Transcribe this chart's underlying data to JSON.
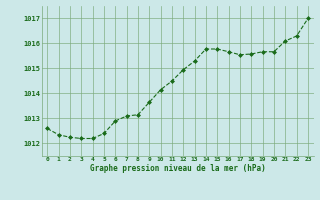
{
  "x": [
    0,
    1,
    2,
    3,
    4,
    5,
    6,
    7,
    8,
    9,
    10,
    11,
    12,
    13,
    14,
    15,
    16,
    17,
    18,
    19,
    20,
    21,
    22,
    23
  ],
  "y": [
    1012.6,
    1012.35,
    1012.25,
    1012.2,
    1012.2,
    1012.4,
    1012.9,
    1013.1,
    1013.15,
    1013.65,
    1014.15,
    1014.5,
    1014.95,
    1015.3,
    1015.78,
    1015.78,
    1015.67,
    1015.55,
    1015.58,
    1015.67,
    1015.67,
    1016.1,
    1016.3,
    1017.0
  ],
  "line_color": "#1a6b1a",
  "marker_color": "#1a6b1a",
  "bg_color": "#cce8e8",
  "grid_color": "#7aaa7a",
  "xlabel": "Graphe pression niveau de la mer (hPa)",
  "xlabel_color": "#1a6b1a",
  "tick_color": "#1a6b1a",
  "ylim": [
    1011.5,
    1017.5
  ],
  "yticks": [
    1012,
    1013,
    1014,
    1015,
    1016,
    1017
  ],
  "xticks": [
    0,
    1,
    2,
    3,
    4,
    5,
    6,
    7,
    8,
    9,
    10,
    11,
    12,
    13,
    14,
    15,
    16,
    17,
    18,
    19,
    20,
    21,
    22,
    23
  ],
  "figsize": [
    3.2,
    2.0
  ],
  "dpi": 100
}
